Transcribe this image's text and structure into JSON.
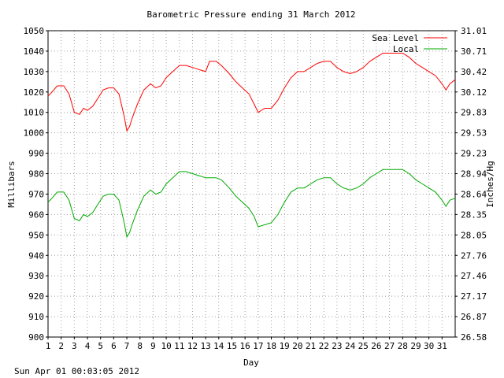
{
  "footer_timestamp": "Sun Apr 01 00:03:05 2012",
  "chart_data": {
    "type": "line",
    "title": "Barometric Pressure ending 31 March 2012",
    "xlabel": "Day",
    "ylabel": "Millibars",
    "ylabel_right": "Inches/Hg",
    "xlim": [
      1,
      32
    ],
    "ylim": [
      900,
      1050
    ],
    "x_ticks": [
      "1",
      "2",
      "3",
      "4",
      "5",
      "6",
      "7",
      "8",
      "9",
      "10",
      "11",
      "12",
      "13",
      "14",
      "15",
      "16",
      "17",
      "18",
      "19",
      "20",
      "21",
      "22",
      "23",
      "24",
      "25",
      "26",
      "27",
      "28",
      "29",
      "30",
      "31"
    ],
    "y_ticks": [
      "900",
      "910",
      "920",
      "930",
      "940",
      "950",
      "960",
      "970",
      "980",
      "990",
      "1000",
      "1010",
      "1020",
      "1030",
      "1040",
      "1050"
    ],
    "y_ticks_right": [
      "26.58",
      "26.87",
      "27.17",
      "27.46",
      "27.76",
      "28.05",
      "28.35",
      "28.64",
      "28.94",
      "29.23",
      "29.53",
      "29.83",
      "30.12",
      "30.42",
      "30.71",
      "31.01"
    ],
    "grid": true,
    "legend_position": "top-right",
    "series": [
      {
        "name": "Sea Level",
        "color": "#ff0000",
        "x": [
          1,
          1.3,
          1.7,
          2.2,
          2.6,
          3.0,
          3.4,
          3.7,
          4.0,
          4.4,
          4.8,
          5.2,
          5.6,
          6.0,
          6.4,
          6.8,
          7.0,
          7.2,
          7.4,
          7.8,
          8.3,
          8.8,
          9.2,
          9.6,
          10.0,
          10.5,
          11.0,
          11.5,
          12.0,
          12.5,
          13.0,
          13.3,
          13.8,
          14.2,
          14.8,
          15.3,
          15.8,
          16.3,
          16.7,
          17.0,
          17.5,
          18.0,
          18.5,
          19.0,
          19.5,
          20.0,
          20.5,
          21.0,
          21.5,
          22.0,
          22.5,
          23.0,
          23.5,
          24.0,
          24.5,
          25.0,
          25.5,
          26.0,
          26.5,
          27.0,
          27.5,
          28.0,
          28.5,
          29.0,
          29.5,
          30.0,
          30.5,
          31.0,
          31.3,
          31.6,
          32.0
        ],
        "values": [
          1018,
          1020,
          1023,
          1023,
          1019,
          1010,
          1009,
          1012,
          1011,
          1013,
          1017,
          1021,
          1022,
          1022,
          1019,
          1008,
          1001,
          1003,
          1007,
          1014,
          1021,
          1024,
          1022,
          1023,
          1027,
          1030,
          1033,
          1033,
          1032,
          1031,
          1030,
          1035,
          1035,
          1033,
          1029,
          1025,
          1022,
          1019,
          1014,
          1010,
          1012,
          1012,
          1016,
          1022,
          1027,
          1030,
          1030,
          1032,
          1034,
          1035,
          1035,
          1032,
          1030,
          1029,
          1030,
          1032,
          1035,
          1037,
          1039,
          1039,
          1039,
          1039,
          1037,
          1034,
          1032,
          1030,
          1028,
          1024,
          1021,
          1024,
          1026
        ]
      },
      {
        "name": "Local",
        "color": "#00aa00",
        "x": [
          1,
          1.3,
          1.7,
          2.2,
          2.6,
          3.0,
          3.4,
          3.7,
          4.0,
          4.4,
          4.8,
          5.2,
          5.6,
          6.0,
          6.4,
          6.8,
          7.0,
          7.2,
          7.4,
          7.8,
          8.3,
          8.8,
          9.2,
          9.6,
          10.0,
          10.5,
          11.0,
          11.5,
          12.0,
          12.5,
          13.0,
          13.3,
          13.8,
          14.2,
          14.8,
          15.3,
          15.8,
          16.3,
          16.7,
          17.0,
          17.5,
          18.0,
          18.5,
          19.0,
          19.5,
          20.0,
          20.5,
          21.0,
          21.5,
          22.0,
          22.5,
          23.0,
          23.5,
          24.0,
          24.5,
          25.0,
          25.5,
          26.0,
          26.5,
          27.0,
          27.5,
          28.0,
          28.5,
          29.0,
          29.5,
          30.0,
          30.5,
          31.0,
          31.3,
          31.6,
          32.0
        ],
        "values": [
          966,
          968,
          971,
          971,
          967,
          958,
          957,
          960,
          959,
          961,
          965,
          969,
          970,
          970,
          967,
          956,
          949,
          951,
          955,
          962,
          969,
          972,
          970,
          971,
          975,
          978,
          981,
          981,
          980,
          979,
          978,
          978,
          978,
          977,
          973,
          969,
          966,
          963,
          959,
          954,
          955,
          956,
          960,
          966,
          971,
          973,
          973,
          975,
          977,
          978,
          978,
          975,
          973,
          972,
          973,
          975,
          978,
          980,
          982,
          982,
          982,
          982,
          980,
          977,
          975,
          973,
          971,
          967,
          964,
          967,
          968
        ]
      }
    ]
  }
}
